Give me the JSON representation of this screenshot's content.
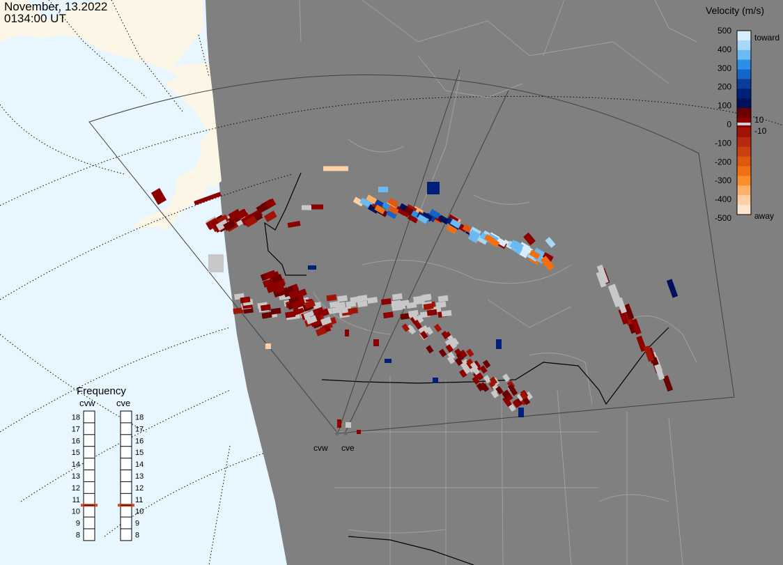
{
  "title": {
    "date": "November, 13.2022",
    "time": "0134:00 UT"
  },
  "legend": {
    "title": "Velocity (m/s)",
    "ticks": [
      "500",
      "400",
      "300",
      "200",
      "100",
      "0",
      "-100",
      "-200",
      "-300",
      "-400",
      "-500"
    ],
    "label_plus": "10",
    "label_minus": "-10",
    "label_toward": "toward",
    "label_away": "away",
    "colors": [
      "#d8eefc",
      "#a8d8f8",
      "#6bbaf2",
      "#2d8ee6",
      "#1565c8",
      "#0b3c9c",
      "#001f78",
      "#00105a",
      "#6a0000",
      "#8c0000",
      "#a01408",
      "#b82a0e",
      "#cc4010",
      "#e05810",
      "#f27012",
      "#fa8e2a",
      "#fcb06a",
      "#fdd0a8",
      "#fde4cc"
    ]
  },
  "frequency": {
    "title": "Frequency",
    "radars": [
      {
        "name": "cvw",
        "selected": 11
      },
      {
        "name": "cve",
        "selected": 11
      }
    ],
    "levels": [
      "18",
      "17",
      "16",
      "15",
      "14",
      "13",
      "12",
      "11",
      "10",
      "9",
      "8"
    ],
    "marker_color": "#e0441c"
  },
  "radars": [
    {
      "name": "cvw"
    },
    {
      "name": "cve"
    }
  ],
  "colors": {
    "ocean": "#e8f6ff",
    "night": "#808080",
    "land": "#fbf6e6",
    "boundary_dark": "#000000",
    "boundary_light": "#a0a0a0",
    "ground_scatter": "#c8c8c8"
  }
}
